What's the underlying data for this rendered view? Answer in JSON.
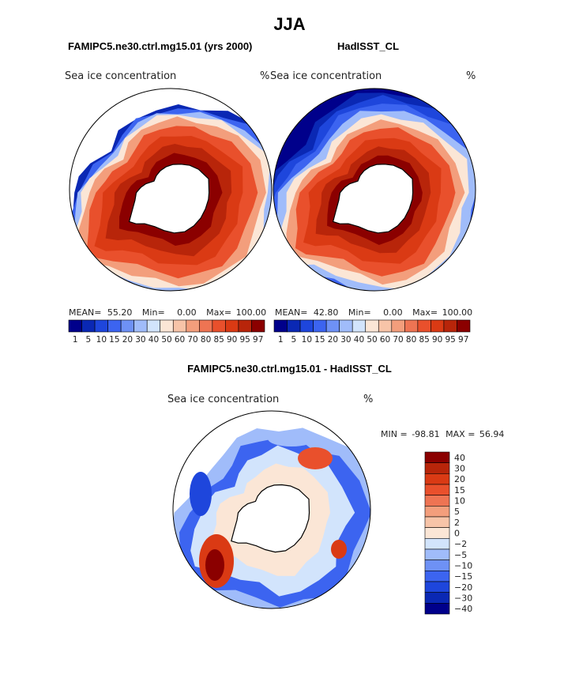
{
  "figure": {
    "season": "JJA",
    "panel_left_title": "FAMIPC5.ne30.ctrl.mg15.01 (yrs 2000)",
    "panel_right_title": "HadISST_CL",
    "diff_title": "FAMIPC5.ne30.ctrl.mg15.01 - HadISST_CL"
  },
  "colors": {
    "ice_scale": [
      "#00008b",
      "#0a28b4",
      "#1e46dc",
      "#3c64f0",
      "#6e91f5",
      "#a0bcfa",
      "#d2e4fc",
      "#fbe6d6",
      "#f7c4a8",
      "#f39e7c",
      "#ee7453",
      "#e9502c",
      "#da3a14",
      "#b8250a",
      "#8b0000"
    ],
    "diff_scale": [
      "#00008b",
      "#0a28b4",
      "#1e46dc",
      "#3c64f0",
      "#6e91f5",
      "#a0bcfa",
      "#d2e4fc",
      "#fbe6d6",
      "#f7c4a8",
      "#f39e7c",
      "#ee7453",
      "#e9502c",
      "#da3a14",
      "#b8250a",
      "#8b0000"
    ]
  },
  "chart_data": [
    {
      "type": "heatmap",
      "projection": "south-polar-stereographic",
      "title": "FAMIPC5.ne30.ctrl.mg15.01 (yrs 2000)",
      "variable_label": "Sea ice concentration",
      "units": "%",
      "stats": {
        "mean_label": "MEAN=",
        "mean": "55.20",
        "min_label": "Min=",
        "min": "0.00",
        "max_label": "Max=",
        "max": "100.00"
      },
      "colorbar_ticks": [
        "1",
        "5",
        "10",
        "15",
        "20",
        "30",
        "40",
        "50",
        "60",
        "70",
        "80",
        "85",
        "90",
        "95",
        "97"
      ],
      "ice_band": {
        "inner_value": 97,
        "outer_value": 1,
        "edge_extent": "narrow"
      }
    },
    {
      "type": "heatmap",
      "projection": "south-polar-stereographic",
      "title": "HadISST_CL",
      "variable_label": "Sea ice concentration",
      "units": "%",
      "stats": {
        "mean_label": "MEAN=",
        "mean": "42.80",
        "min_label": "Min=",
        "min": "0.00",
        "max_label": "Max=",
        "max": "100.00"
      },
      "colorbar_ticks": [
        "1",
        "5",
        "10",
        "15",
        "20",
        "30",
        "40",
        "50",
        "60",
        "70",
        "80",
        "85",
        "90",
        "95",
        "97"
      ],
      "ice_band": {
        "inner_value": 97,
        "outer_value": 1,
        "open_ocean_value": 0,
        "edge_extent": "wide"
      }
    },
    {
      "type": "heatmap",
      "projection": "south-polar-stereographic",
      "title": "FAMIPC5.ne30.ctrl.mg15.01 - HadISST_CL",
      "variable_label": "Sea ice concentration",
      "units": "%",
      "stats": {
        "min_label": "MIN =",
        "min": "-98.81",
        "max_label": "MAX =",
        "max": "56.94"
      },
      "colorbar_ticks": [
        "40",
        "30",
        "20",
        "15",
        "10",
        "5",
        "2",
        "0",
        "−2",
        "−5",
        "−10",
        "−15",
        "−20",
        "−30",
        "−40"
      ]
    }
  ]
}
